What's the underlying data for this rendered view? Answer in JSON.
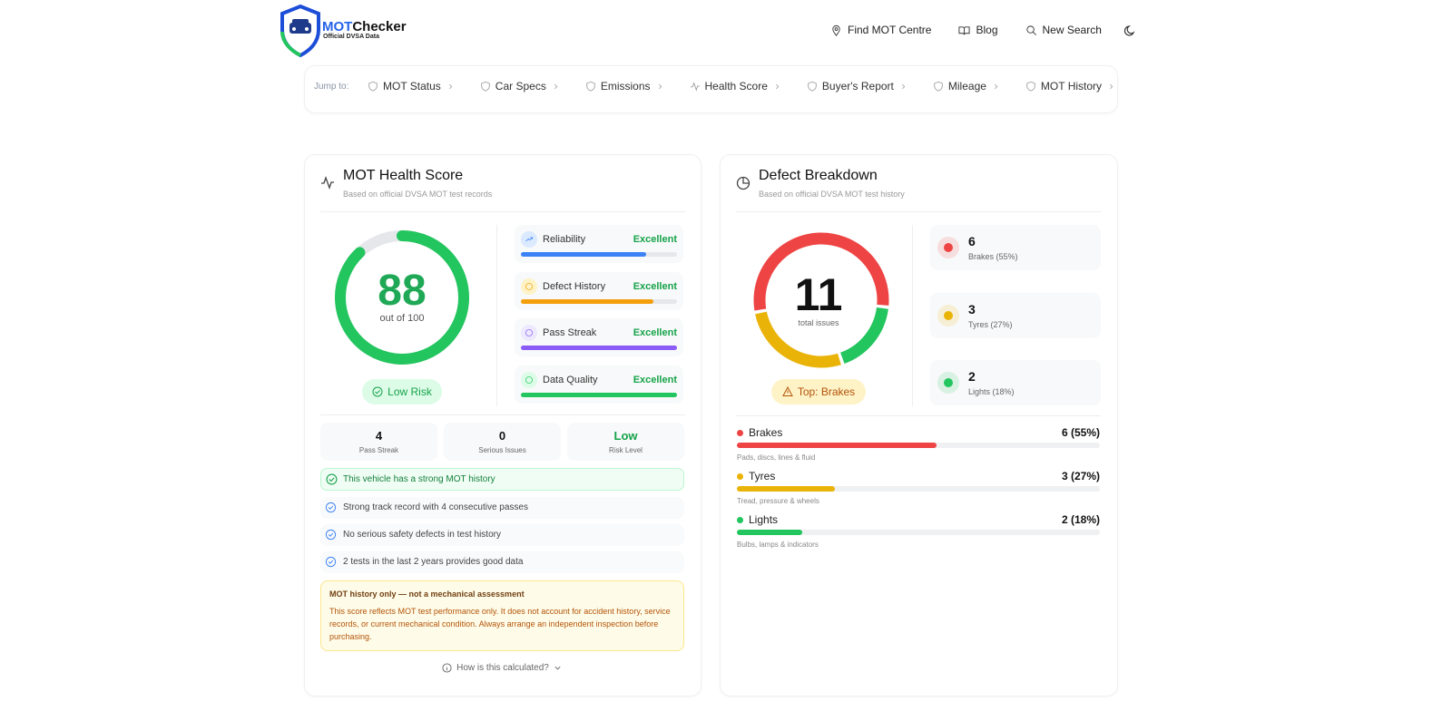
{
  "header": {
    "logo": {
      "brand_prefix": "MOT",
      "brand_suffix": "Checker",
      "tagline": "Official DVSA Data"
    },
    "nav": [
      "Find MOT Centre",
      "Blog",
      "New Search"
    ]
  },
  "jump_bar": {
    "label": "Jump to:",
    "links": [
      "MOT Status",
      "Car Specs",
      "Emissions",
      "Health Score",
      "Buyer's Report",
      "Mileage",
      "MOT History"
    ]
  },
  "health_score": {
    "title": "MOT Health Score",
    "subtitle": "Based on official DVSA MOT test records",
    "score": 88,
    "score_max": 100,
    "score_caption": "out of 100",
    "risk_badge": "Low Risk",
    "metrics": [
      {
        "name": "Reliability",
        "rating": "Excellent",
        "level": 80,
        "color": "#3b82f6"
      },
      {
        "name": "Defect History",
        "rating": "Excellent",
        "level": 85,
        "color": "#f59e0b"
      },
      {
        "name": "Pass Streak",
        "rating": "Excellent",
        "level": 100,
        "color": "#8b5cf6"
      },
      {
        "name": "Data Quality",
        "rating": "Excellent",
        "level": 100,
        "color": "#22c55e"
      }
    ],
    "stats": [
      {
        "value": 4,
        "label": "Pass Streak"
      },
      {
        "value": 0,
        "label": "Serious Issues"
      },
      {
        "value": "Low",
        "label": "Risk Level"
      }
    ],
    "summary": "This vehicle has a strong MOT history",
    "points": [
      "Strong track record with 4 consecutive passes",
      "No serious safety defects in test history",
      "2 tests in the last 2 years provides good data"
    ],
    "disclaimer": {
      "title": "MOT history only — not a mechanical assessment",
      "text": "This score reflects MOT test performance only. It does not account for accident history, service records, or current mechanical condition. Always arrange an independent inspection before purchasing."
    },
    "calc_link": "How is this calculated?"
  },
  "defects": {
    "title": "Defect Breakdown",
    "subtitle": "Based on official DVSA MOT test history",
    "total": 11,
    "total_caption": "total issues",
    "top_badge": "Top: Brakes",
    "items": [
      {
        "name": "Brakes",
        "count": 6,
        "percent": 55,
        "card_label": "Brakes (55%)",
        "row_label": "6 (55%)",
        "description": "Pads, discs, lines & fluid",
        "color": "#ef4444"
      },
      {
        "name": "Tyres",
        "count": 3,
        "percent": 27,
        "card_label": "Tyres (27%)",
        "row_label": "3 (27%)",
        "description": "Tread, pressure & wheels",
        "color": "#eab308"
      },
      {
        "name": "Lights",
        "count": 2,
        "percent": 18,
        "card_label": "Lights (18%)",
        "row_label": "2 (18%)",
        "description": "Bulbs, lamps & indicators",
        "color": "#22c55e"
      }
    ]
  }
}
